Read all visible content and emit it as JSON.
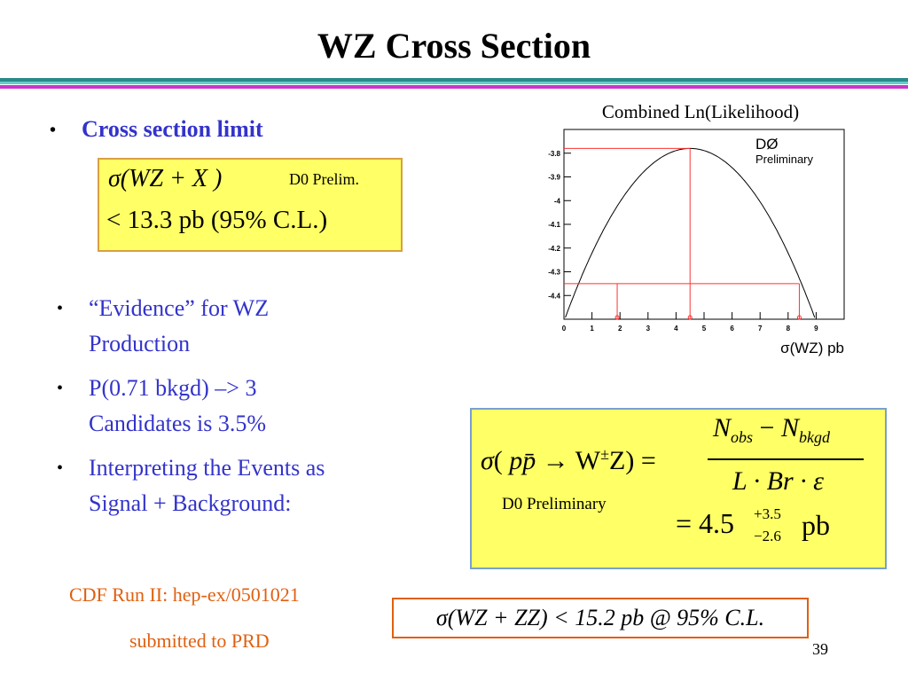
{
  "title": "WZ Cross Section",
  "bullets_top": {
    "item1": "Cross section limit"
  },
  "limit_box": {
    "line1_formula": "σ(WZ + X )",
    "line1_note": "D0 Prelim.",
    "line2": "< 13.3 pb (95% C.L.)"
  },
  "bullets": [
    {
      "line1": "“Evidence” for WZ",
      "line2": "Production"
    },
    {
      "line1": "P(0.71 bkgd) –> 3",
      "line2": "Candidates is 3.5%"
    },
    {
      "line1": "Interpreting the Events as",
      "line2": "Signal + Background:"
    }
  ],
  "formula_box": {
    "lhs_sigma": "σ",
    "lhs_paren_open": "(",
    "lhs_pp": "pp̄",
    "lhs_arrow": "→",
    "lhs_W": "W",
    "lhs_pm": "±",
    "lhs_Z": "Z",
    "lhs_paren_close": ")",
    "equals": "=",
    "num_N1": "N",
    "num_sub1": "obs",
    "num_minus": "−",
    "num_N2": "N",
    "num_sub2": "bkgd",
    "den": "L · Br · ε",
    "note": "D0 Preliminary",
    "result_eq": "= 4.5",
    "result_sup": "+3.5",
    "result_sub": "−2.6",
    "result_unit": "pb"
  },
  "cdf": {
    "line1": "CDF Run II: hep-ex/0501021",
    "line2": "submitted to PRD"
  },
  "cdf_box": "σ(WZ + ZZ) < 15.2 pb @ 95% C.L.",
  "page_number": "39",
  "colors": {
    "bullet_blue": "#3333cc",
    "orange_text": "#e06010",
    "box_yellow": "#ffff66",
    "box_border": "#d8a040",
    "bar_teal": "#2a8a8a",
    "bar_magenta": "#cc33cc"
  },
  "chart_data": {
    "type": "line",
    "title": "Combined Ln(Likelihood)",
    "xlabel": "σ(WZ) pb",
    "ylabel": "",
    "annotation_main": "DØ",
    "annotation_sub": "Preliminary",
    "xlim": [
      0,
      10
    ],
    "ylim": [
      -4.5,
      -3.7
    ],
    "x_ticks": [
      0,
      1,
      2,
      3,
      4,
      5,
      6,
      7,
      8,
      9
    ],
    "y_ticks": [
      -3.8,
      -3.9,
      -4,
      -4.1,
      -4.2,
      -4.3,
      -4.4
    ],
    "y_tick_labels": [
      "-3.8",
      "-3.9",
      "-4",
      "-4.1",
      "-4.2",
      "-4.3",
      "-4.4"
    ],
    "series": [
      {
        "peak_x": 4.5,
        "peak_y": -3.78,
        "curvature": 0.036
      }
    ],
    "reference_lines": {
      "peak_y": -3.78,
      "peak_x": 4.5,
      "lower_y": -4.35,
      "lower_x": [
        1.9,
        8.4
      ],
      "outer_x": [
        1.9,
        8.4
      ]
    },
    "curve_ends_at_y": -4.5
  }
}
